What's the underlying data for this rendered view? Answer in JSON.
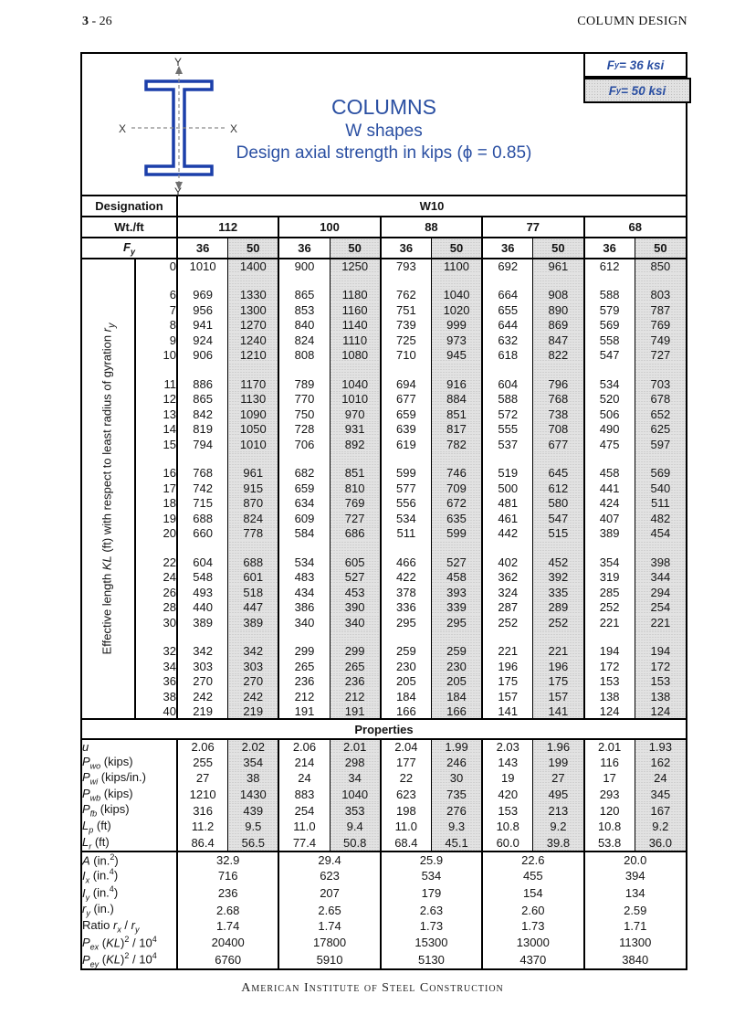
{
  "page": {
    "number_html": "<b>3</b> - 26",
    "header_right": "COLUMN DESIGN",
    "footer": "American Institute of Steel Construction"
  },
  "legend": {
    "fy36_html": "F<sub>y</sub> = 36 ksi",
    "fy50_html": "F<sub>y</sub> = 50 ksi"
  },
  "title": {
    "line1": "COLUMNS",
    "line2": "W shapes",
    "line3": "Design axial strength in kips (ϕ = 0.85)"
  },
  "icon": {
    "x_left": "X",
    "x_right": "X",
    "y_top": "Y",
    "y_bottom": "Y"
  },
  "header_rows": {
    "designation_label": "Designation",
    "designation_value": "W10",
    "wt_label": "Wt./ft",
    "weights": [
      "112",
      "100",
      "88",
      "77",
      "68"
    ],
    "fy_label_html": "<i>F<sub>y</sub></i>",
    "fy_values": [
      "36",
      "50",
      "36",
      "50",
      "36",
      "50",
      "36",
      "50",
      "36",
      "50"
    ]
  },
  "kl_axis_label_html": "Effective length <i>KL</i> (ft) with respect to least radius of gyration <i>r<sub>y</sub></i>",
  "kl_table": {
    "groups": [
      [
        {
          "kl": "0",
          "v": [
            "1010",
            "1400",
            "900",
            "1250",
            "793",
            "1100",
            "692",
            "961",
            "612",
            "850"
          ]
        }
      ],
      [
        {
          "kl": "6",
          "v": [
            "969",
            "1330",
            "865",
            "1180",
            "762",
            "1040",
            "664",
            "908",
            "588",
            "803"
          ]
        },
        {
          "kl": "7",
          "v": [
            "956",
            "1300",
            "853",
            "1160",
            "751",
            "1020",
            "655",
            "890",
            "579",
            "787"
          ]
        },
        {
          "kl": "8",
          "v": [
            "941",
            "1270",
            "840",
            "1140",
            "739",
            "999",
            "644",
            "869",
            "569",
            "769"
          ]
        },
        {
          "kl": "9",
          "v": [
            "924",
            "1240",
            "824",
            "1110",
            "725",
            "973",
            "632",
            "847",
            "558",
            "749"
          ]
        },
        {
          "kl": "10",
          "v": [
            "906",
            "1210",
            "808",
            "1080",
            "710",
            "945",
            "618",
            "822",
            "547",
            "727"
          ]
        }
      ],
      [
        {
          "kl": "11",
          "v": [
            "886",
            "1170",
            "789",
            "1040",
            "694",
            "916",
            "604",
            "796",
            "534",
            "703"
          ]
        },
        {
          "kl": "12",
          "v": [
            "865",
            "1130",
            "770",
            "1010",
            "677",
            "884",
            "588",
            "768",
            "520",
            "678"
          ]
        },
        {
          "kl": "13",
          "v": [
            "842",
            "1090",
            "750",
            "970",
            "659",
            "851",
            "572",
            "738",
            "506",
            "652"
          ]
        },
        {
          "kl": "14",
          "v": [
            "819",
            "1050",
            "728",
            "931",
            "639",
            "817",
            "555",
            "708",
            "490",
            "625"
          ]
        },
        {
          "kl": "15",
          "v": [
            "794",
            "1010",
            "706",
            "892",
            "619",
            "782",
            "537",
            "677",
            "475",
            "597"
          ]
        }
      ],
      [
        {
          "kl": "16",
          "v": [
            "768",
            "961",
            "682",
            "851",
            "599",
            "746",
            "519",
            "645",
            "458",
            "569"
          ]
        },
        {
          "kl": "17",
          "v": [
            "742",
            "915",
            "659",
            "810",
            "577",
            "709",
            "500",
            "612",
            "441",
            "540"
          ]
        },
        {
          "kl": "18",
          "v": [
            "715",
            "870",
            "634",
            "769",
            "556",
            "672",
            "481",
            "580",
            "424",
            "511"
          ]
        },
        {
          "kl": "19",
          "v": [
            "688",
            "824",
            "609",
            "727",
            "534",
            "635",
            "461",
            "547",
            "407",
            "482"
          ]
        },
        {
          "kl": "20",
          "v": [
            "660",
            "778",
            "584",
            "686",
            "511",
            "599",
            "442",
            "515",
            "389",
            "454"
          ]
        }
      ],
      [
        {
          "kl": "22",
          "v": [
            "604",
            "688",
            "534",
            "605",
            "466",
            "527",
            "402",
            "452",
            "354",
            "398"
          ]
        },
        {
          "kl": "24",
          "v": [
            "548",
            "601",
            "483",
            "527",
            "422",
            "458",
            "362",
            "392",
            "319",
            "344"
          ]
        },
        {
          "kl": "26",
          "v": [
            "493",
            "518",
            "434",
            "453",
            "378",
            "393",
            "324",
            "335",
            "285",
            "294"
          ]
        },
        {
          "kl": "28",
          "v": [
            "440",
            "447",
            "386",
            "390",
            "336",
            "339",
            "287",
            "289",
            "252",
            "254"
          ]
        },
        {
          "kl": "30",
          "v": [
            "389",
            "389",
            "340",
            "340",
            "295",
            "295",
            "252",
            "252",
            "221",
            "221"
          ]
        }
      ],
      [
        {
          "kl": "32",
          "v": [
            "342",
            "342",
            "299",
            "299",
            "259",
            "259",
            "221",
            "221",
            "194",
            "194"
          ]
        },
        {
          "kl": "34",
          "v": [
            "303",
            "303",
            "265",
            "265",
            "230",
            "230",
            "196",
            "196",
            "172",
            "172"
          ]
        },
        {
          "kl": "36",
          "v": [
            "270",
            "270",
            "236",
            "236",
            "205",
            "205",
            "175",
            "175",
            "153",
            "153"
          ]
        },
        {
          "kl": "38",
          "v": [
            "242",
            "242",
            "212",
            "212",
            "184",
            "184",
            "157",
            "157",
            "138",
            "138"
          ]
        },
        {
          "kl": "40",
          "v": [
            "219",
            "219",
            "191",
            "191",
            "166",
            "166",
            "141",
            "141",
            "124",
            "124"
          ]
        }
      ]
    ]
  },
  "properties": {
    "band_label": "Properties",
    "rows": [
      {
        "label_html": "<i>u</i>",
        "v": [
          "2.06",
          "2.02",
          "2.06",
          "2.01",
          "2.04",
          "1.99",
          "2.03",
          "1.96",
          "2.01",
          "1.93"
        ]
      },
      {
        "label_html": "<i>P<sub>wo</sub></i> (kips)",
        "v": [
          "255",
          "354",
          "214",
          "298",
          "177",
          "246",
          "143",
          "199",
          "116",
          "162"
        ]
      },
      {
        "label_html": "<i>P<sub>wi</sub></i> (kips/in.)",
        "v": [
          "27",
          "38",
          "24",
          "34",
          "22",
          "30",
          "19",
          "27",
          "17",
          "24"
        ]
      },
      {
        "label_html": "<i>P<sub>wb</sub></i> (kips)",
        "v": [
          "1210",
          "1430",
          "883",
          "1040",
          "623",
          "735",
          "420",
          "495",
          "293",
          "345"
        ]
      },
      {
        "label_html": "<i>P<sub>fb</sub></i> (kips)",
        "v": [
          "316",
          "439",
          "254",
          "353",
          "198",
          "276",
          "153",
          "213",
          "120",
          "167"
        ]
      },
      {
        "label_html": "<i>L<sub>p</sub></i> (ft)",
        "v": [
          "11.2",
          "9.5",
          "11.0",
          "9.4",
          "11.0",
          "9.3",
          "10.8",
          "9.2",
          "10.8",
          "9.2"
        ]
      },
      {
        "label_html": "<i>L<sub>r</sub></i> (ft)",
        "v": [
          "86.4",
          "56.5",
          "77.4",
          "50.8",
          "68.4",
          "45.1",
          "60.0",
          "39.8",
          "53.8",
          "36.0"
        ]
      }
    ]
  },
  "section_properties": {
    "rows": [
      {
        "label_html": "<i>A</i> (in.<sup>2</sup>)",
        "v": [
          "32.9",
          "29.4",
          "25.9",
          "22.6",
          "20.0"
        ]
      },
      {
        "label_html": "<i>I<sub>x</sub></i> (in.<sup>4</sup>)",
        "v": [
          "716",
          "623",
          "534",
          "455",
          "394"
        ]
      },
      {
        "label_html": "<i>I<sub>y</sub></i> (in.<sup>4</sup>)",
        "v": [
          "236",
          "207",
          "179",
          "154",
          "134"
        ]
      },
      {
        "label_html": "<i>r<sub>y</sub></i> (in.)",
        "v": [
          "2.68",
          "2.65",
          "2.63",
          "2.60",
          "2.59"
        ]
      },
      {
        "label_html": "Ratio <i>r<sub>x</sub></i> / <i>r<sub>y</sub></i>",
        "v": [
          "1.74",
          "1.74",
          "1.73",
          "1.73",
          "1.71"
        ]
      },
      {
        "label_html": "<i>P<sub>ex</sub></i> (<i>KL</i>)<sup>2</sup> / 10<sup>4</sup>",
        "v": [
          "20400",
          "17800",
          "15300",
          "13000",
          "11300"
        ]
      },
      {
        "label_html": "<i>P<sub>ey</sub></i> (<i>KL</i>)<sup>2</sup> / 10<sup>4</sup>",
        "v": [
          "6760",
          "5910",
          "5130",
          "4370",
          "3840"
        ]
      }
    ]
  },
  "colors": {
    "accent_blue": "#2a4fa2",
    "shade_gray": "#e2e2e2",
    "beam_outline_blue": "#1b3faa"
  }
}
